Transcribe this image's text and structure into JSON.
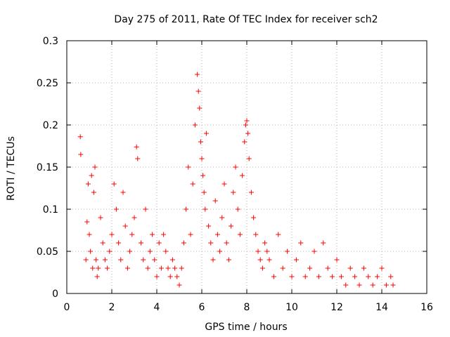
{
  "chart_data": {
    "type": "scatter",
    "title": "Day 275 of 2011, Rate Of TEC Index for receiver sch2",
    "xlabel": "GPS time / hours",
    "ylabel": "ROTI / TECUs",
    "xlim": [
      0,
      16
    ],
    "ylim": [
      0,
      0.3
    ],
    "xticks": [
      0,
      2,
      4,
      6,
      8,
      10,
      12,
      14,
      16
    ],
    "yticks": [
      0,
      0.05,
      0.1,
      0.15,
      0.2,
      0.25,
      0.3
    ],
    "ytick_labels": [
      "0",
      "0.05",
      "0.1",
      "0.15",
      "0.2",
      "0.25",
      "0.3"
    ],
    "grid": true,
    "marker": "+",
    "colors": {
      "points": "#ff0000",
      "grid": "#a0a0a0"
    },
    "series": [
      {
        "x": [
          0.6,
          0.62,
          0.85,
          0.9,
          0.95,
          1.0,
          1.05,
          1.1,
          1.15,
          1.2,
          1.25,
          1.3,
          1.35,
          1.4,
          1.5,
          1.6,
          1.7,
          1.8,
          1.9,
          2.0,
          2.1,
          2.2,
          2.3,
          2.4,
          2.5,
          2.6,
          2.7,
          2.8,
          2.9,
          3.0,
          3.1,
          3.15,
          3.3,
          3.4,
          3.5,
          3.6,
          3.7,
          3.8,
          3.9,
          4.0,
          4.1,
          4.2,
          4.3,
          4.4,
          4.5,
          4.6,
          4.7,
          4.8,
          4.9,
          5.0,
          5.1,
          5.2,
          5.3,
          5.4,
          5.5,
          5.6,
          5.7,
          5.8,
          5.85,
          5.9,
          5.95,
          6.0,
          6.05,
          6.1,
          6.15,
          6.2,
          6.3,
          6.4,
          6.5,
          6.6,
          6.7,
          6.8,
          6.9,
          7.0,
          7.1,
          7.2,
          7.3,
          7.4,
          7.5,
          7.6,
          7.7,
          7.8,
          7.9,
          7.95,
          8.0,
          8.05,
          8.1,
          8.2,
          8.3,
          8.4,
          8.5,
          8.6,
          8.7,
          8.8,
          8.9,
          9.0,
          9.2,
          9.4,
          9.6,
          9.8,
          10.0,
          10.2,
          10.4,
          10.6,
          10.8,
          11.0,
          11.2,
          11.4,
          11.6,
          11.8,
          12.0,
          12.2,
          12.4,
          12.6,
          12.8,
          13.0,
          13.2,
          13.4,
          13.6,
          13.8,
          14.0,
          14.2,
          14.4,
          14.5
        ],
        "y": [
          0.186,
          0.165,
          0.04,
          0.085,
          0.13,
          0.07,
          0.05,
          0.14,
          0.03,
          0.12,
          0.15,
          0.04,
          0.02,
          0.03,
          0.09,
          0.06,
          0.04,
          0.03,
          0.05,
          0.07,
          0.13,
          0.1,
          0.06,
          0.04,
          0.12,
          0.08,
          0.03,
          0.05,
          0.07,
          0.09,
          0.174,
          0.16,
          0.06,
          0.04,
          0.1,
          0.03,
          0.05,
          0.07,
          0.04,
          0.02,
          0.06,
          0.03,
          0.07,
          0.05,
          0.03,
          0.02,
          0.04,
          0.03,
          0.02,
          0.01,
          0.03,
          0.06,
          0.1,
          0.15,
          0.07,
          0.13,
          0.2,
          0.26,
          0.24,
          0.22,
          0.18,
          0.16,
          0.14,
          0.12,
          0.1,
          0.19,
          0.08,
          0.06,
          0.04,
          0.11,
          0.07,
          0.05,
          0.09,
          0.13,
          0.06,
          0.04,
          0.08,
          0.12,
          0.15,
          0.1,
          0.07,
          0.14,
          0.18,
          0.2,
          0.205,
          0.19,
          0.16,
          0.12,
          0.09,
          0.07,
          0.05,
          0.04,
          0.03,
          0.06,
          0.05,
          0.04,
          0.02,
          0.07,
          0.03,
          0.05,
          0.02,
          0.04,
          0.06,
          0.02,
          0.03,
          0.05,
          0.02,
          0.06,
          0.03,
          0.02,
          0.04,
          0.02,
          0.01,
          0.03,
          0.02,
          0.01,
          0.03,
          0.02,
          0.01,
          0.02,
          0.03,
          0.01,
          0.02,
          0.01
        ]
      }
    ]
  }
}
